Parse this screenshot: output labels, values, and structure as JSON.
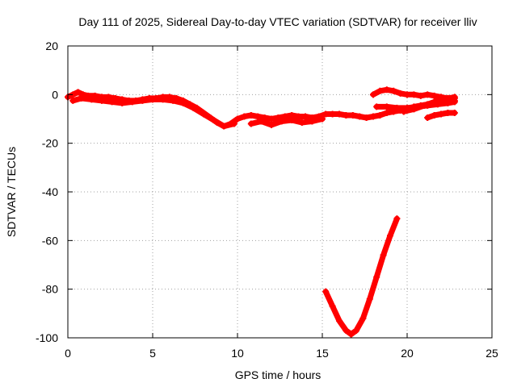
{
  "chart_data": {
    "type": "line",
    "title": "Day 111 of 2025, Sidereal Day-to-day VTEC variation (SDTVAR) for receiver lliv",
    "xlabel": "GPS time / hours",
    "ylabel": "SDTVAR / TECUs",
    "xlim": [
      0,
      25
    ],
    "ylim": [
      -100,
      20
    ],
    "xticks": [
      "0",
      "5",
      "10",
      "15",
      "20",
      "25"
    ],
    "yticks": [
      "20",
      "0",
      "-20",
      "-40",
      "-60",
      "-80",
      "-100"
    ],
    "xtick_values": [
      0,
      5,
      10,
      15,
      20,
      25
    ],
    "ytick_values": [
      20,
      0,
      -20,
      -40,
      -60,
      -80,
      -100
    ],
    "grid": true,
    "legend": "none",
    "color": "#ff0000",
    "series": [
      {
        "x": [
          0.0,
          0.3,
          0.6,
          0.9,
          1.2,
          1.6,
          2.0,
          2.4,
          2.8,
          3.2,
          3.6,
          4.0,
          4.4,
          4.8,
          5.2,
          5.6,
          6.0,
          6.4,
          6.8,
          7.2,
          7.6,
          8.0,
          8.4,
          8.8,
          9.2,
          9.6,
          10.0,
          10.4,
          10.8,
          11.2,
          11.6,
          12.0,
          12.4,
          12.8,
          13.2,
          13.6,
          14.0,
          14.4,
          14.8,
          15.2,
          15.6,
          16.0,
          16.4,
          16.8,
          17.2,
          17.6,
          18.0,
          18.4,
          18.8,
          19.2,
          19.6,
          20.0,
          20.4,
          20.8,
          21.2,
          21.6,
          22.0,
          22.4,
          22.8
        ],
        "y": [
          -1,
          0,
          1,
          0,
          -0.5,
          -0.5,
          -1,
          -1,
          -1.5,
          -2,
          -2.5,
          -2.5,
          -2,
          -1.5,
          -1.5,
          -1,
          -1,
          -1.5,
          -2.5,
          -4,
          -5.5,
          -7.5,
          -9.5,
          -11.5,
          -13,
          -12,
          -10,
          -9,
          -8.5,
          -9,
          -9.5,
          -10,
          -9.5,
          -9,
          -8.5,
          -9,
          -9,
          -9.5,
          -9,
          -8,
          -8,
          -8,
          -8.5,
          -8.5,
          -9,
          -9.5,
          -9,
          -8.5,
          -7.5,
          -7,
          -6.5,
          -6,
          -5,
          -4.5,
          -4,
          -3.5,
          -3.5,
          -3,
          -2.5
        ]
      },
      {
        "x": [
          0.3,
          0.8,
          1.4,
          2.0,
          2.6,
          3.2,
          3.8,
          4.4,
          5.0,
          5.6,
          6.2,
          6.8,
          7.4,
          8.0,
          8.6,
          9.2,
          9.8
        ],
        "y": [
          -2.5,
          -1.5,
          -2,
          -2.5,
          -3,
          -3.5,
          -3,
          -2.5,
          -2,
          -2,
          -2.5,
          -3.5,
          -5.5,
          -8,
          -10.5,
          -13,
          -12
        ]
      },
      {
        "x": [
          10.8,
          11.4,
          12.0,
          12.6,
          13.2,
          13.8,
          14.4,
          15.0
        ],
        "y": [
          -12,
          -11,
          -12.5,
          -11,
          -10.5,
          -11.5,
          -11,
          -10
        ]
      },
      {
        "x": [
          18.0,
          18.4,
          18.8,
          19.2,
          19.6,
          20.0,
          20.4,
          20.8,
          21.2,
          21.6,
          22.0,
          22.4,
          22.8
        ],
        "y": [
          0,
          1.5,
          2,
          1.5,
          0.5,
          0,
          0,
          -0.5,
          0,
          -0.5,
          -1,
          -1.5,
          -1.5
        ]
      },
      {
        "x": [
          18.2,
          18.8,
          19.4,
          20.0,
          20.6,
          21.2,
          21.8,
          22.4,
          22.8
        ],
        "y": [
          -5,
          -5,
          -5.5,
          -5.5,
          -5,
          -4.5,
          -4,
          -3.5,
          -3
        ]
      },
      {
        "x": [
          19.8,
          20.4,
          21.0,
          21.6,
          22.0,
          22.4,
          22.8
        ],
        "y": [
          -7,
          -6,
          -4.5,
          -3,
          -2,
          -1.5,
          -1
        ]
      },
      {
        "x": [
          21.2,
          21.6,
          22.0,
          22.4,
          22.8
        ],
        "y": [
          -9.5,
          -8.5,
          -8,
          -7.5,
          -7.5
        ]
      },
      {
        "x": [
          15.2,
          15.6,
          16.0,
          16.4,
          16.7,
          17.0,
          17.4,
          17.8,
          18.2,
          18.6,
          19.0,
          19.4
        ],
        "y": [
          -81,
          -87,
          -93,
          -97,
          -98.5,
          -97,
          -92,
          -84,
          -75,
          -66,
          -58,
          -51
        ]
      }
    ]
  }
}
